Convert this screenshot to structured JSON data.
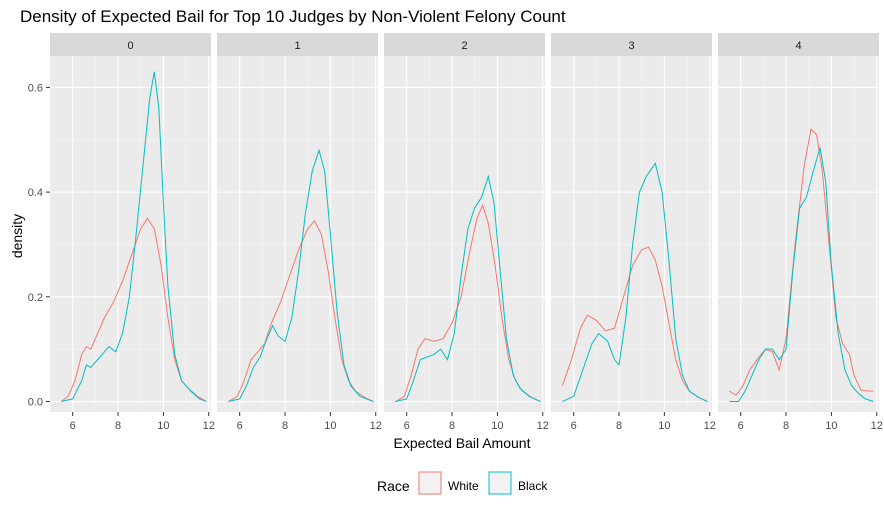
{
  "chart_data": {
    "type": "line",
    "title": "Density of Expected Bail for Top 10 Judges by Non-Violent Felony Count",
    "xlabel": "Expected Bail Amount",
    "ylabel": "density",
    "xlim": [
      5,
      12.1
    ],
    "ylim": [
      -0.02,
      0.66
    ],
    "x_ticks": [
      "6",
      "8",
      "10",
      "12"
    ],
    "y_ticks": [
      "0.0",
      "0.2",
      "0.4",
      "0.6"
    ],
    "grid": true,
    "legend": {
      "title": "Race",
      "position": "bottom",
      "entries": [
        "White",
        "Black"
      ]
    },
    "colors": {
      "White": "#F8766D",
      "Black": "#00BFC4"
    },
    "facets": [
      {
        "label": "0",
        "series": [
          {
            "name": "White",
            "points": [
              [
                5.5,
                0.0
              ],
              [
                5.8,
                0.01
              ],
              [
                6.1,
                0.04
              ],
              [
                6.4,
                0.09
              ],
              [
                6.6,
                0.105
              ],
              [
                6.8,
                0.1
              ],
              [
                7.0,
                0.12
              ],
              [
                7.4,
                0.16
              ],
              [
                7.8,
                0.19
              ],
              [
                8.2,
                0.23
              ],
              [
                8.6,
                0.28
              ],
              [
                9.0,
                0.33
              ],
              [
                9.3,
                0.35
              ],
              [
                9.6,
                0.33
              ],
              [
                9.9,
                0.26
              ],
              [
                10.2,
                0.16
              ],
              [
                10.5,
                0.08
              ],
              [
                10.8,
                0.04
              ],
              [
                11.1,
                0.025
              ],
              [
                11.5,
                0.01
              ],
              [
                11.9,
                0.0
              ]
            ]
          },
          {
            "name": "Black",
            "points": [
              [
                5.5,
                0.0
              ],
              [
                6.0,
                0.005
              ],
              [
                6.4,
                0.04
              ],
              [
                6.6,
                0.07
              ],
              [
                6.8,
                0.065
              ],
              [
                7.0,
                0.075
              ],
              [
                7.3,
                0.09
              ],
              [
                7.6,
                0.105
              ],
              [
                7.9,
                0.095
              ],
              [
                8.2,
                0.13
              ],
              [
                8.5,
                0.2
              ],
              [
                8.8,
                0.32
              ],
              [
                9.1,
                0.45
              ],
              [
                9.4,
                0.58
              ],
              [
                9.6,
                0.63
              ],
              [
                9.8,
                0.56
              ],
              [
                10.0,
                0.38
              ],
              [
                10.2,
                0.22
              ],
              [
                10.5,
                0.09
              ],
              [
                10.8,
                0.04
              ],
              [
                11.2,
                0.02
              ],
              [
                11.6,
                0.005
              ],
              [
                11.9,
                0.0
              ]
            ]
          }
        ]
      },
      {
        "label": "1",
        "series": [
          {
            "name": "White",
            "points": [
              [
                5.5,
                0.0
              ],
              [
                5.9,
                0.01
              ],
              [
                6.2,
                0.04
              ],
              [
                6.5,
                0.08
              ],
              [
                6.8,
                0.095
              ],
              [
                7.1,
                0.11
              ],
              [
                7.4,
                0.15
              ],
              [
                7.8,
                0.19
              ],
              [
                8.2,
                0.24
              ],
              [
                8.6,
                0.29
              ],
              [
                9.0,
                0.33
              ],
              [
                9.3,
                0.345
              ],
              [
                9.6,
                0.32
              ],
              [
                9.9,
                0.25
              ],
              [
                10.2,
                0.16
              ],
              [
                10.5,
                0.08
              ],
              [
                10.8,
                0.04
              ],
              [
                11.1,
                0.02
              ],
              [
                11.5,
                0.008
              ],
              [
                11.9,
                0.0
              ]
            ]
          },
          {
            "name": "Black",
            "points": [
              [
                5.5,
                0.0
              ],
              [
                6.0,
                0.005
              ],
              [
                6.3,
                0.03
              ],
              [
                6.6,
                0.065
              ],
              [
                6.9,
                0.085
              ],
              [
                7.2,
                0.12
              ],
              [
                7.45,
                0.145
              ],
              [
                7.7,
                0.125
              ],
              [
                8.0,
                0.115
              ],
              [
                8.3,
                0.16
              ],
              [
                8.6,
                0.25
              ],
              [
                8.9,
                0.36
              ],
              [
                9.2,
                0.44
              ],
              [
                9.5,
                0.48
              ],
              [
                9.75,
                0.44
              ],
              [
                10.0,
                0.32
              ],
              [
                10.3,
                0.17
              ],
              [
                10.6,
                0.07
              ],
              [
                10.9,
                0.03
              ],
              [
                11.3,
                0.01
              ],
              [
                11.9,
                0.0
              ]
            ]
          }
        ]
      },
      {
        "label": "2",
        "series": [
          {
            "name": "White",
            "points": [
              [
                5.5,
                0.0
              ],
              [
                5.9,
                0.01
              ],
              [
                6.2,
                0.05
              ],
              [
                6.5,
                0.1
              ],
              [
                6.8,
                0.12
              ],
              [
                7.2,
                0.115
              ],
              [
                7.6,
                0.12
              ],
              [
                8.0,
                0.15
              ],
              [
                8.4,
                0.2
              ],
              [
                8.8,
                0.29
              ],
              [
                9.1,
                0.35
              ],
              [
                9.35,
                0.375
              ],
              [
                9.6,
                0.34
              ],
              [
                9.9,
                0.26
              ],
              [
                10.2,
                0.16
              ],
              [
                10.5,
                0.08
              ],
              [
                10.8,
                0.04
              ],
              [
                11.1,
                0.02
              ],
              [
                11.5,
                0.008
              ],
              [
                11.9,
                0.0
              ]
            ]
          },
          {
            "name": "Black",
            "points": [
              [
                5.5,
                0.0
              ],
              [
                6.0,
                0.005
              ],
              [
                6.3,
                0.04
              ],
              [
                6.6,
                0.08
              ],
              [
                6.9,
                0.085
              ],
              [
                7.2,
                0.09
              ],
              [
                7.5,
                0.1
              ],
              [
                7.8,
                0.08
              ],
              [
                8.1,
                0.13
              ],
              [
                8.4,
                0.24
              ],
              [
                8.7,
                0.33
              ],
              [
                9.0,
                0.37
              ],
              [
                9.3,
                0.39
              ],
              [
                9.6,
                0.43
              ],
              [
                9.85,
                0.38
              ],
              [
                10.1,
                0.26
              ],
              [
                10.4,
                0.12
              ],
              [
                10.7,
                0.05
              ],
              [
                11.0,
                0.025
              ],
              [
                11.4,
                0.01
              ],
              [
                11.9,
                0.0
              ]
            ]
          }
        ]
      },
      {
        "label": "3",
        "series": [
          {
            "name": "White",
            "points": [
              [
                5.5,
                0.03
              ],
              [
                5.9,
                0.08
              ],
              [
                6.3,
                0.14
              ],
              [
                6.6,
                0.165
              ],
              [
                7.0,
                0.155
              ],
              [
                7.4,
                0.135
              ],
              [
                7.8,
                0.14
              ],
              [
                8.2,
                0.2
              ],
              [
                8.6,
                0.26
              ],
              [
                9.0,
                0.29
              ],
              [
                9.3,
                0.295
              ],
              [
                9.6,
                0.27
              ],
              [
                9.9,
                0.22
              ],
              [
                10.2,
                0.15
              ],
              [
                10.5,
                0.08
              ],
              [
                10.8,
                0.04
              ],
              [
                11.1,
                0.02
              ],
              [
                11.5,
                0.008
              ],
              [
                11.9,
                0.0
              ]
            ]
          },
          {
            "name": "Black",
            "points": [
              [
                5.5,
                0.0
              ],
              [
                6.0,
                0.01
              ],
              [
                6.4,
                0.06
              ],
              [
                6.8,
                0.11
              ],
              [
                7.1,
                0.13
              ],
              [
                7.5,
                0.115
              ],
              [
                7.8,
                0.08
              ],
              [
                8.0,
                0.07
              ],
              [
                8.3,
                0.16
              ],
              [
                8.6,
                0.3
              ],
              [
                8.9,
                0.4
              ],
              [
                9.2,
                0.43
              ],
              [
                9.6,
                0.455
              ],
              [
                9.9,
                0.4
              ],
              [
                10.2,
                0.27
              ],
              [
                10.5,
                0.12
              ],
              [
                10.8,
                0.05
              ],
              [
                11.1,
                0.02
              ],
              [
                11.5,
                0.008
              ],
              [
                11.9,
                0.0
              ]
            ]
          }
        ]
      },
      {
        "label": "4",
        "series": [
          {
            "name": "White",
            "points": [
              [
                5.5,
                0.02
              ],
              [
                5.8,
                0.012
              ],
              [
                6.1,
                0.03
              ],
              [
                6.4,
                0.06
              ],
              [
                6.8,
                0.085
              ],
              [
                7.1,
                0.1
              ],
              [
                7.4,
                0.095
              ],
              [
                7.7,
                0.06
              ],
              [
                8.0,
                0.12
              ],
              [
                8.4,
                0.3
              ],
              [
                8.8,
                0.45
              ],
              [
                9.1,
                0.52
              ],
              [
                9.35,
                0.51
              ],
              [
                9.6,
                0.44
              ],
              [
                9.9,
                0.3
              ],
              [
                10.2,
                0.16
              ],
              [
                10.5,
                0.11
              ],
              [
                10.8,
                0.09
              ],
              [
                11.0,
                0.05
              ],
              [
                11.3,
                0.022
              ],
              [
                11.6,
                0.02
              ],
              [
                11.85,
                0.02
              ]
            ]
          },
          {
            "name": "Black",
            "points": [
              [
                5.5,
                0.0
              ],
              [
                5.9,
                0.0
              ],
              [
                6.2,
                0.02
              ],
              [
                6.5,
                0.05
              ],
              [
                6.8,
                0.08
              ],
              [
                7.1,
                0.1
              ],
              [
                7.4,
                0.1
              ],
              [
                7.7,
                0.08
              ],
              [
                8.0,
                0.1
              ],
              [
                8.3,
                0.25
              ],
              [
                8.6,
                0.37
              ],
              [
                8.9,
                0.39
              ],
              [
                9.2,
                0.44
              ],
              [
                9.5,
                0.485
              ],
              [
                9.75,
                0.42
              ],
              [
                10.0,
                0.26
              ],
              [
                10.3,
                0.13
              ],
              [
                10.6,
                0.06
              ],
              [
                10.9,
                0.03
              ],
              [
                11.2,
                0.015
              ],
              [
                11.5,
                0.005
              ],
              [
                11.85,
                0.0
              ]
            ]
          }
        ]
      }
    ]
  }
}
